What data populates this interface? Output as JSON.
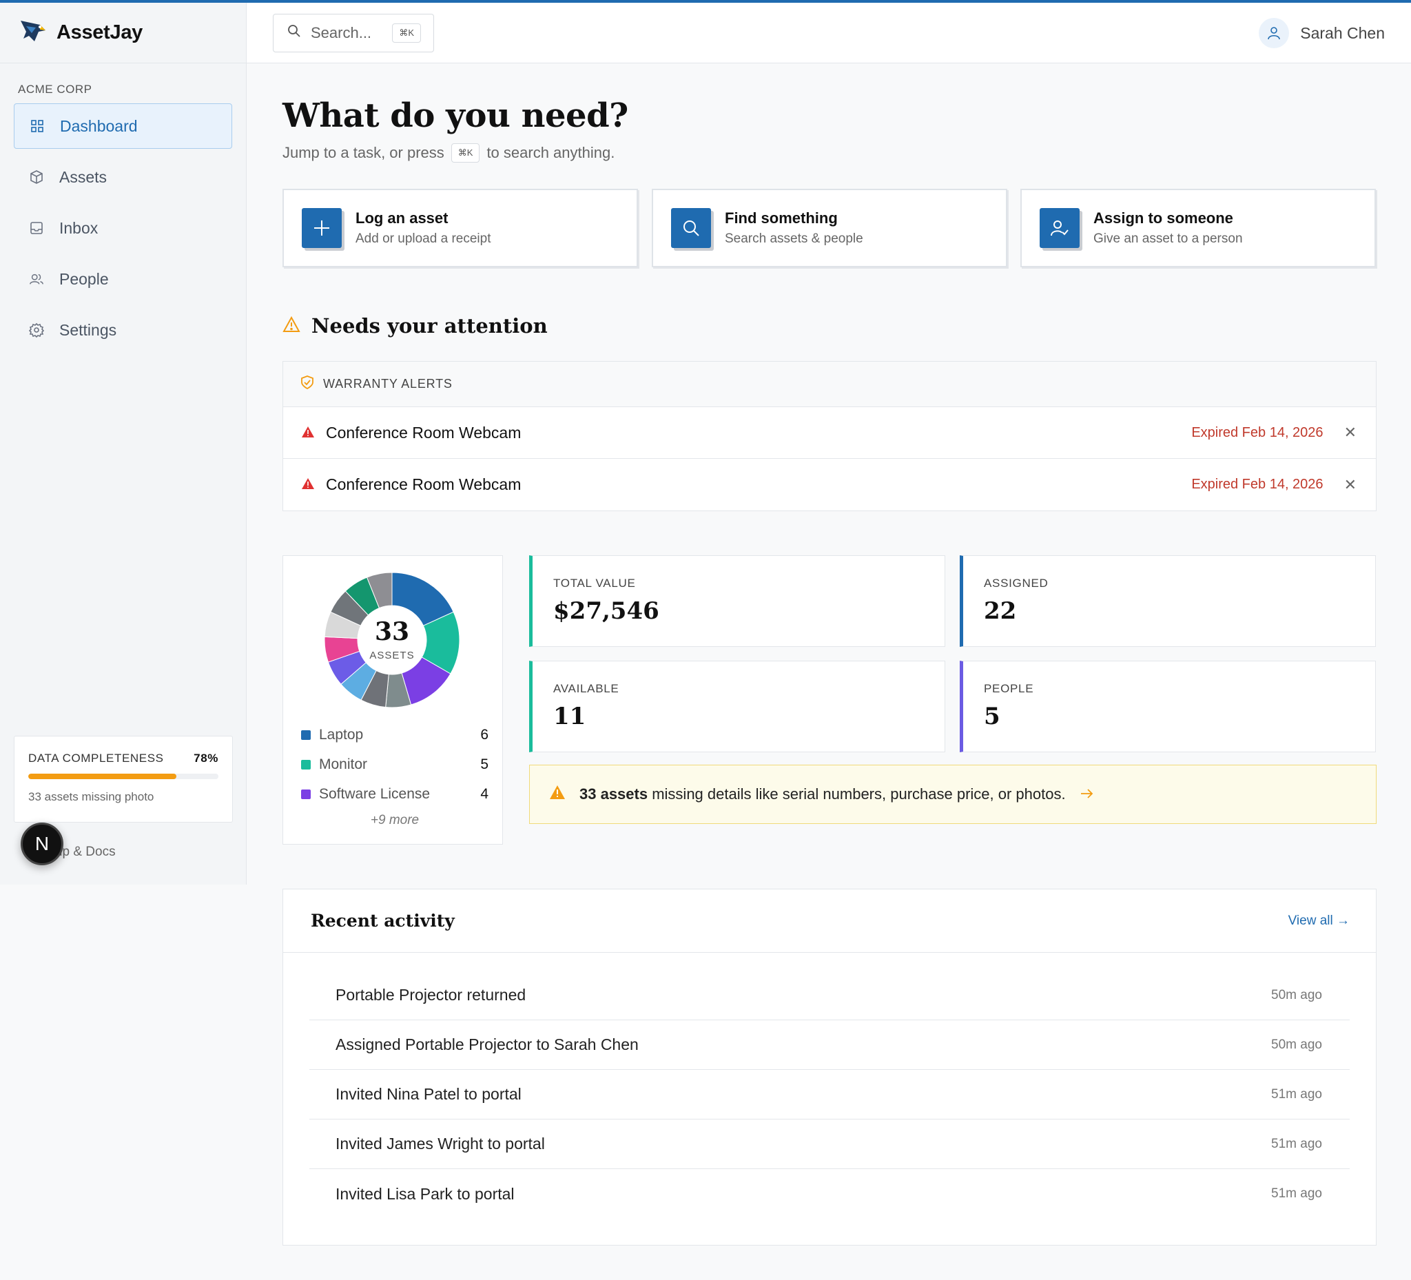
{
  "app": {
    "name": "AssetJay"
  },
  "sidebar": {
    "org": "ACME CORP",
    "items": [
      {
        "label": "Dashboard",
        "icon": "grid-icon",
        "active": true
      },
      {
        "label": "Assets",
        "icon": "box-icon"
      },
      {
        "label": "Inbox",
        "icon": "inbox-icon"
      },
      {
        "label": "People",
        "icon": "people-icon"
      },
      {
        "label": "Settings",
        "icon": "gear-icon"
      }
    ],
    "completeness": {
      "label": "DATA COMPLETENESS",
      "percent_text": "78%",
      "percent": 78,
      "note": "33 assets missing photo"
    },
    "help": "Help & Docs",
    "badge": "N"
  },
  "header": {
    "search_placeholder": "Search...",
    "search_shortcut": "⌘K",
    "user_name": "Sarah Chen"
  },
  "main": {
    "title": "What do you need?",
    "subtitle_before": "Jump to a task, or press",
    "subtitle_kbd": "⌘K",
    "subtitle_after": "to search anything.",
    "actions": [
      {
        "title": "Log an asset",
        "sub": "Add or upload a receipt",
        "icon": "plus-icon"
      },
      {
        "title": "Find something",
        "sub": "Search assets & people",
        "icon": "search-icon"
      },
      {
        "title": "Assign to someone",
        "sub": "Give an asset to a person",
        "icon": "user-check-icon"
      }
    ],
    "attention": {
      "title": "Needs your attention",
      "alerts_header": "WARRANTY ALERTS",
      "alerts": [
        {
          "name": "Conference Room Webcam",
          "status": "Expired Feb 14, 2026"
        },
        {
          "name": "Conference Room Webcam",
          "status": "Expired Feb 14, 2026"
        }
      ]
    },
    "donut": {
      "total": "33",
      "label": "ASSETS",
      "legend": [
        {
          "name": "Laptop",
          "value": "6",
          "color": "#1f6bb0"
        },
        {
          "name": "Monitor",
          "value": "5",
          "color": "#1abc9c"
        },
        {
          "name": "Software License",
          "value": "4",
          "color": "#7b3fe4"
        }
      ],
      "more": "+9 more"
    },
    "stats": [
      {
        "label": "TOTAL VALUE",
        "value": "$27,546",
        "color": "#1abc9c"
      },
      {
        "label": "ASSIGNED",
        "value": "22",
        "color": "#1f6bb0"
      },
      {
        "label": "AVAILABLE",
        "value": "11",
        "color": "#1abc9c"
      },
      {
        "label": "PEOPLE",
        "value": "5",
        "color": "#6b5be3"
      }
    ],
    "notice": {
      "bold": "33 assets",
      "text": "missing details like serial numbers, purchase price, or photos."
    },
    "activity": {
      "title": "Recent activity",
      "view_all": "View all →",
      "rows": [
        {
          "text": "Portable Projector returned",
          "time": "50m ago"
        },
        {
          "text": "Assigned Portable Projector to Sarah Chen",
          "time": "50m ago"
        },
        {
          "text": "Invited Nina Patel to portal",
          "time": "51m ago"
        },
        {
          "text": "Invited James Wright to portal",
          "time": "51m ago"
        },
        {
          "text": "Invited Lisa Park to portal",
          "time": "51m ago"
        }
      ]
    }
  },
  "chart_data": {
    "type": "pie",
    "title": "",
    "total": 33,
    "categories": [
      "Laptop",
      "Monitor",
      "Software License",
      "Other (9 more)"
    ],
    "values": [
      6,
      5,
      4,
      18
    ]
  }
}
